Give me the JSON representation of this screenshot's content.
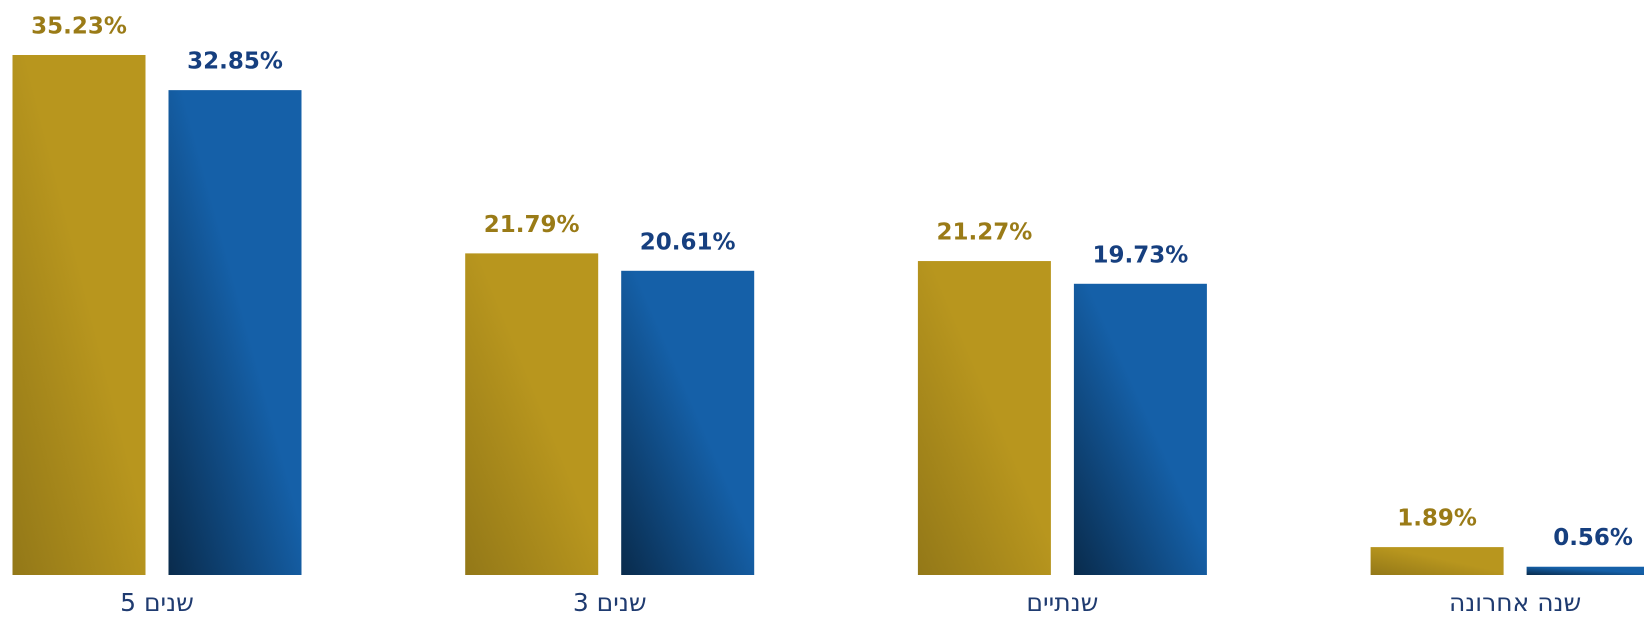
{
  "chart_data": {
    "type": "bar",
    "categories": [
      "5 שנים",
      "3 שנים",
      "שנתיים",
      "שנה אחרונה"
    ],
    "series": [
      {
        "color": "#b8961e",
        "label_color": "#9a7b17",
        "values": [
          35.23,
          21.79,
          21.27,
          1.89
        ],
        "value_labels": [
          "35.23%",
          "21.79%",
          "21.27%",
          "1.89%"
        ]
      },
      {
        "color": "#1560a8",
        "label_color": "#163f7f",
        "values": [
          32.85,
          20.61,
          19.73,
          0.56
        ],
        "value_labels": [
          "32.85%",
          "20.61%",
          "19.73%",
          "0.56%"
        ]
      }
    ]
  }
}
